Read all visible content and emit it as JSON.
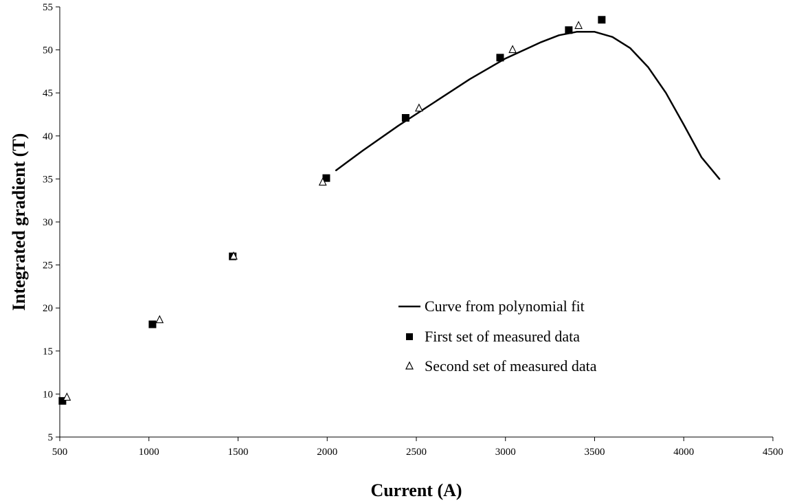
{
  "chart_data": {
    "type": "scatter",
    "title": "",
    "xlabel": "Current (A)",
    "ylabel": "Integrated gradient (T)",
    "xlim": [
      500,
      4500
    ],
    "ylim": [
      5,
      55
    ],
    "x_ticks": [
      500,
      1000,
      1500,
      2000,
      2500,
      3000,
      3500,
      4000,
      4500
    ],
    "y_ticks": [
      5,
      10,
      15,
      20,
      25,
      30,
      35,
      40,
      45,
      50,
      55
    ],
    "grid": false,
    "legend_position": "center-right",
    "series": [
      {
        "name": "Curve from polynomial fit",
        "kind": "line",
        "color": "#000000",
        "points": [
          [
            2050,
            36.0
          ],
          [
            2200,
            38.3
          ],
          [
            2400,
            41.2
          ],
          [
            2600,
            43.9
          ],
          [
            2800,
            46.6
          ],
          [
            3000,
            49.0
          ],
          [
            3200,
            50.9
          ],
          [
            3300,
            51.7
          ],
          [
            3400,
            52.1
          ],
          [
            3500,
            52.1
          ],
          [
            3600,
            51.5
          ],
          [
            3700,
            50.2
          ],
          [
            3800,
            48.0
          ],
          [
            3900,
            45.0
          ],
          [
            4000,
            41.3
          ],
          [
            4100,
            37.5
          ],
          [
            4200,
            35.0
          ]
        ]
      },
      {
        "name": "First set of measured data",
        "kind": "marker",
        "marker": "square",
        "color": "#000000",
        "points": [
          [
            515,
            9.2
          ],
          [
            1020,
            18.1
          ],
          [
            1470,
            26.0
          ],
          [
            1995,
            35.1
          ],
          [
            2440,
            42.1
          ],
          [
            2970,
            49.1
          ],
          [
            3355,
            52.3
          ],
          [
            3540,
            53.5
          ]
        ]
      },
      {
        "name": "Second set of measured data",
        "kind": "marker",
        "marker": "triangle-open",
        "color": "#000000",
        "points": [
          [
            540,
            9.6
          ],
          [
            1060,
            18.6
          ],
          [
            1475,
            26.0
          ],
          [
            1975,
            34.6
          ],
          [
            2515,
            43.2
          ],
          [
            3040,
            50.0
          ],
          [
            3410,
            52.8
          ]
        ]
      }
    ]
  }
}
